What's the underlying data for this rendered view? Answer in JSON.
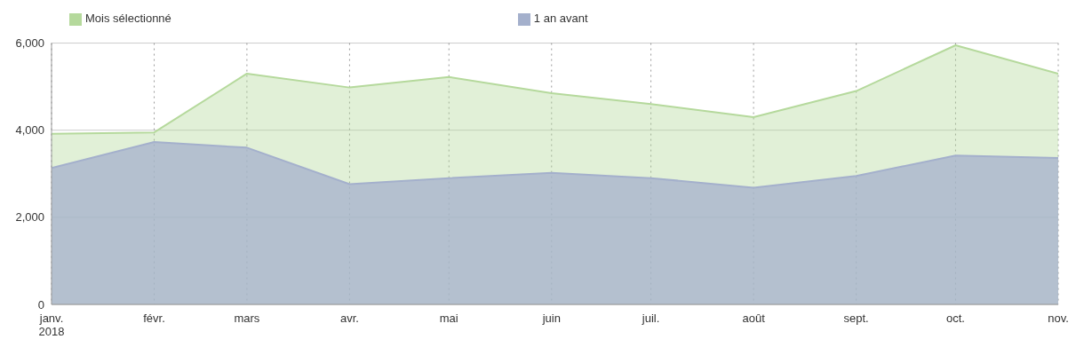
{
  "chart_data": {
    "type": "area",
    "x": [
      "2018-01",
      "2018-02",
      "2018-03",
      "2018-04",
      "2018-05",
      "2018-06",
      "2018-07",
      "2018-08",
      "2018-09",
      "2018-10",
      "2018-11"
    ],
    "series": [
      {
        "name": "Mois sélectionné",
        "color": "#b5d99c",
        "values": [
          3920,
          3950,
          5300,
          4980,
          5220,
          4850,
          4600,
          4300,
          4900,
          5950,
          5300
        ]
      },
      {
        "name": "1 an avant",
        "color": "#a4b0cc",
        "values": [
          3130,
          3730,
          3600,
          2760,
          2900,
          3020,
          2900,
          2680,
          2950,
          3420,
          3360
        ]
      }
    ],
    "xlim": [
      "2018-01",
      "2018-11"
    ],
    "xticks": [
      {
        "value": "2018-01",
        "label": "janv.\n2018"
      },
      {
        "value": "2018-02",
        "label": "févr."
      },
      {
        "value": "2018-03",
        "label": "mars"
      },
      {
        "value": "2018-04",
        "label": "avr."
      },
      {
        "value": "2018-05",
        "label": "mai"
      },
      {
        "value": "2018-06",
        "label": "juin"
      },
      {
        "value": "2018-07",
        "label": "juil."
      },
      {
        "value": "2018-08",
        "label": "août"
      },
      {
        "value": "2018-09",
        "label": "sept."
      },
      {
        "value": "2018-10",
        "label": "oct."
      },
      {
        "value": "2018-11",
        "label": "nov."
      }
    ],
    "ylim": [
      0,
      6000
    ],
    "yticks": [
      0,
      {
        "value": 2000,
        "label": "2,000"
      },
      {
        "value": 4000,
        "label": "4,000"
      },
      {
        "value": 6000,
        "label": "6,000"
      }
    ],
    "grid": true,
    "legend": "top"
  }
}
